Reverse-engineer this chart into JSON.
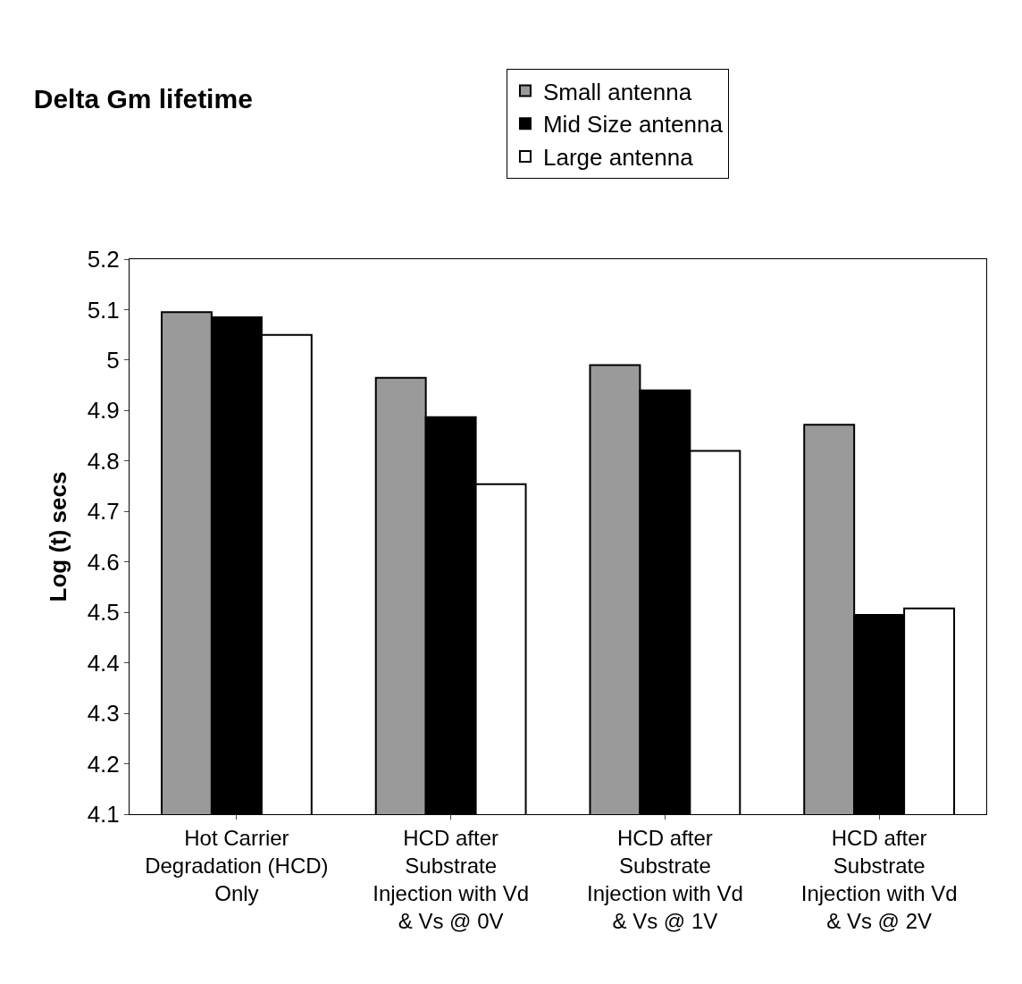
{
  "chart_data": {
    "type": "bar",
    "title": "Delta Gm lifetime",
    "ylabel": "Log (t) secs",
    "categories": [
      "Hot Carrier Degradation (HCD) Only",
      "HCD after Substrate Injection with Vd & Vs @ 0V",
      "HCD after Substrate Injection with Vd & Vs @ 1V",
      "HCD after Substrate Injection with Vd & Vs @ 2V"
    ],
    "series": [
      {
        "name": "Small antenna",
        "color": "#9a9a9a",
        "values": [
          5.095,
          4.965,
          4.99,
          4.872
        ]
      },
      {
        "name": "Mid Size antenna",
        "color": "#000000",
        "values": [
          5.085,
          4.887,
          4.94,
          4.495
        ]
      },
      {
        "name": "Large antenna",
        "color": "#ffffff",
        "values": [
          5.05,
          4.754,
          4.82,
          4.508
        ]
      }
    ],
    "ylim": [
      4.1,
      5.2
    ],
    "yticks": [
      4.1,
      4.2,
      4.3,
      4.4,
      4.5,
      4.6,
      4.7,
      4.8,
      4.9,
      5,
      5.1,
      5.2
    ],
    "legend": "top"
  }
}
